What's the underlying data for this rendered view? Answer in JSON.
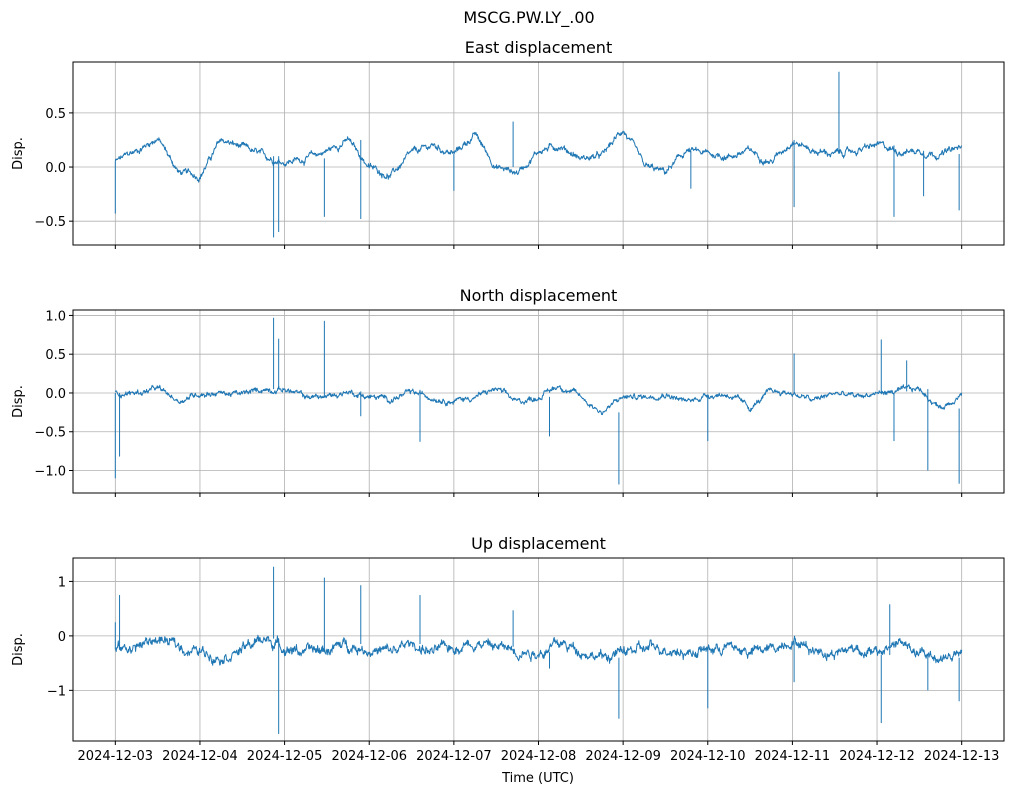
{
  "chart_data": {
    "type": "line",
    "title": "MSCG.PW.LY_.00",
    "xlabel": "Time (UTC)",
    "x_tick_labels": [
      "2024-12-03",
      "2024-12-04",
      "2024-12-05",
      "2024-12-06",
      "2024-12-07",
      "2024-12-08",
      "2024-12-09",
      "2024-12-10",
      "2024-12-11",
      "2024-12-12",
      "2024-12-13"
    ],
    "x_range_days": [
      -0.5,
      10.5
    ],
    "baseline_step_days": 0.25,
    "color": "#1f77b4",
    "grid": true,
    "panels": [
      {
        "title": "East displacement",
        "ylabel": "Disp.",
        "ylim": [
          -0.72,
          0.97
        ],
        "yticks": [
          {
            "v": 0.5,
            "label": "0.5"
          },
          {
            "v": 0.0,
            "label": "0.0"
          },
          {
            "v": -0.5,
            "label": "−0.5"
          }
        ],
        "noise": 0.025,
        "baseline": [
          0.05,
          0.15,
          0.27,
          -0.05,
          -0.08,
          0.25,
          0.18,
          0.1,
          0.05,
          0.08,
          0.15,
          0.25,
          0.0,
          -0.08,
          0.12,
          0.2,
          0.12,
          0.3,
          0.0,
          -0.05,
          0.15,
          0.2,
          0.08,
          0.1,
          0.35,
          0.0,
          -0.05,
          0.15,
          0.12,
          0.1,
          0.15,
          0.05,
          0.25,
          0.15,
          0.12,
          0.15,
          0.2,
          0.15,
          0.15,
          0.12,
          0.18
        ],
        "spikes": [
          [
            0.0,
            -0.43
          ],
          [
            1.87,
            -0.65
          ],
          [
            1.93,
            -0.6
          ],
          [
            2.47,
            -0.46
          ],
          [
            2.9,
            -0.48
          ],
          [
            4.0,
            -0.22
          ],
          [
            4.7,
            0.42
          ],
          [
            6.8,
            -0.2
          ],
          [
            8.02,
            -0.37
          ],
          [
            8.55,
            0.88
          ],
          [
            9.2,
            -0.46
          ],
          [
            9.55,
            -0.27
          ],
          [
            9.97,
            -0.4
          ]
        ]
      },
      {
        "title": "North displacement",
        "ylabel": "Disp.",
        "ylim": [
          -1.29,
          1.07
        ],
        "yticks": [
          {
            "v": 1.0,
            "label": "1.0"
          },
          {
            "v": 0.5,
            "label": "0.5"
          },
          {
            "v": 0.0,
            "label": "0.0"
          },
          {
            "v": -0.5,
            "label": "−0.5"
          },
          {
            "v": -1.0,
            "label": "−1.0"
          }
        ],
        "noise": 0.03,
        "baseline": [
          0.0,
          0.0,
          0.05,
          -0.1,
          0.0,
          0.0,
          -0.02,
          0.05,
          0.05,
          -0.05,
          -0.05,
          0.02,
          -0.05,
          -0.08,
          0.0,
          -0.05,
          -0.1,
          -0.05,
          0.05,
          -0.12,
          -0.05,
          0.1,
          -0.05,
          -0.25,
          -0.05,
          -0.05,
          0.0,
          -0.12,
          -0.02,
          -0.02,
          -0.2,
          0.02,
          0.0,
          -0.1,
          0.0,
          -0.05,
          0.0,
          0.02,
          0.05,
          -0.2,
          0.0
        ],
        "spikes": [
          [
            0.0,
            -1.1
          ],
          [
            0.05,
            -0.82
          ],
          [
            1.87,
            0.97
          ],
          [
            1.93,
            0.7
          ],
          [
            2.47,
            0.93
          ],
          [
            2.9,
            -0.3
          ],
          [
            3.6,
            -0.63
          ],
          [
            5.13,
            -0.56
          ],
          [
            5.95,
            -1.18
          ],
          [
            7.0,
            -0.62
          ],
          [
            8.02,
            0.51
          ],
          [
            9.05,
            0.69
          ],
          [
            9.2,
            -0.62
          ],
          [
            9.35,
            0.42
          ],
          [
            9.6,
            -1.0
          ],
          [
            9.97,
            -1.17
          ]
        ]
      },
      {
        "title": "Up displacement",
        "ylabel": "Disp.",
        "ylim": [
          -1.93,
          1.43
        ],
        "yticks": [
          {
            "v": 1,
            "label": "1"
          },
          {
            "v": 0,
            "label": "0"
          },
          {
            "v": -1,
            "label": "−1"
          }
        ],
        "noise": 0.08,
        "baseline": [
          -0.25,
          -0.2,
          -0.05,
          -0.2,
          -0.3,
          -0.35,
          -0.25,
          -0.05,
          -0.2,
          -0.3,
          -0.25,
          -0.15,
          -0.25,
          -0.3,
          -0.15,
          -0.3,
          -0.2,
          -0.1,
          -0.2,
          -0.25,
          -0.3,
          -0.15,
          -0.25,
          -0.4,
          -0.3,
          -0.25,
          -0.2,
          -0.3,
          -0.25,
          -0.2,
          -0.3,
          -0.25,
          -0.05,
          -0.25,
          -0.3,
          -0.2,
          -0.35,
          -0.1,
          -0.35,
          -0.4,
          -0.35
        ],
        "spikes": [
          [
            0.0,
            0.25
          ],
          [
            0.05,
            0.75
          ],
          [
            1.87,
            1.27
          ],
          [
            1.93,
            -1.8
          ],
          [
            2.47,
            1.07
          ],
          [
            2.9,
            0.93
          ],
          [
            3.6,
            0.75
          ],
          [
            4.7,
            0.47
          ],
          [
            5.13,
            -0.6
          ],
          [
            5.95,
            -1.52
          ],
          [
            7.0,
            -1.33
          ],
          [
            8.02,
            -0.85
          ],
          [
            9.05,
            -1.6
          ],
          [
            9.15,
            0.58
          ],
          [
            9.6,
            -1.0
          ],
          [
            9.97,
            -1.2
          ]
        ]
      }
    ]
  }
}
